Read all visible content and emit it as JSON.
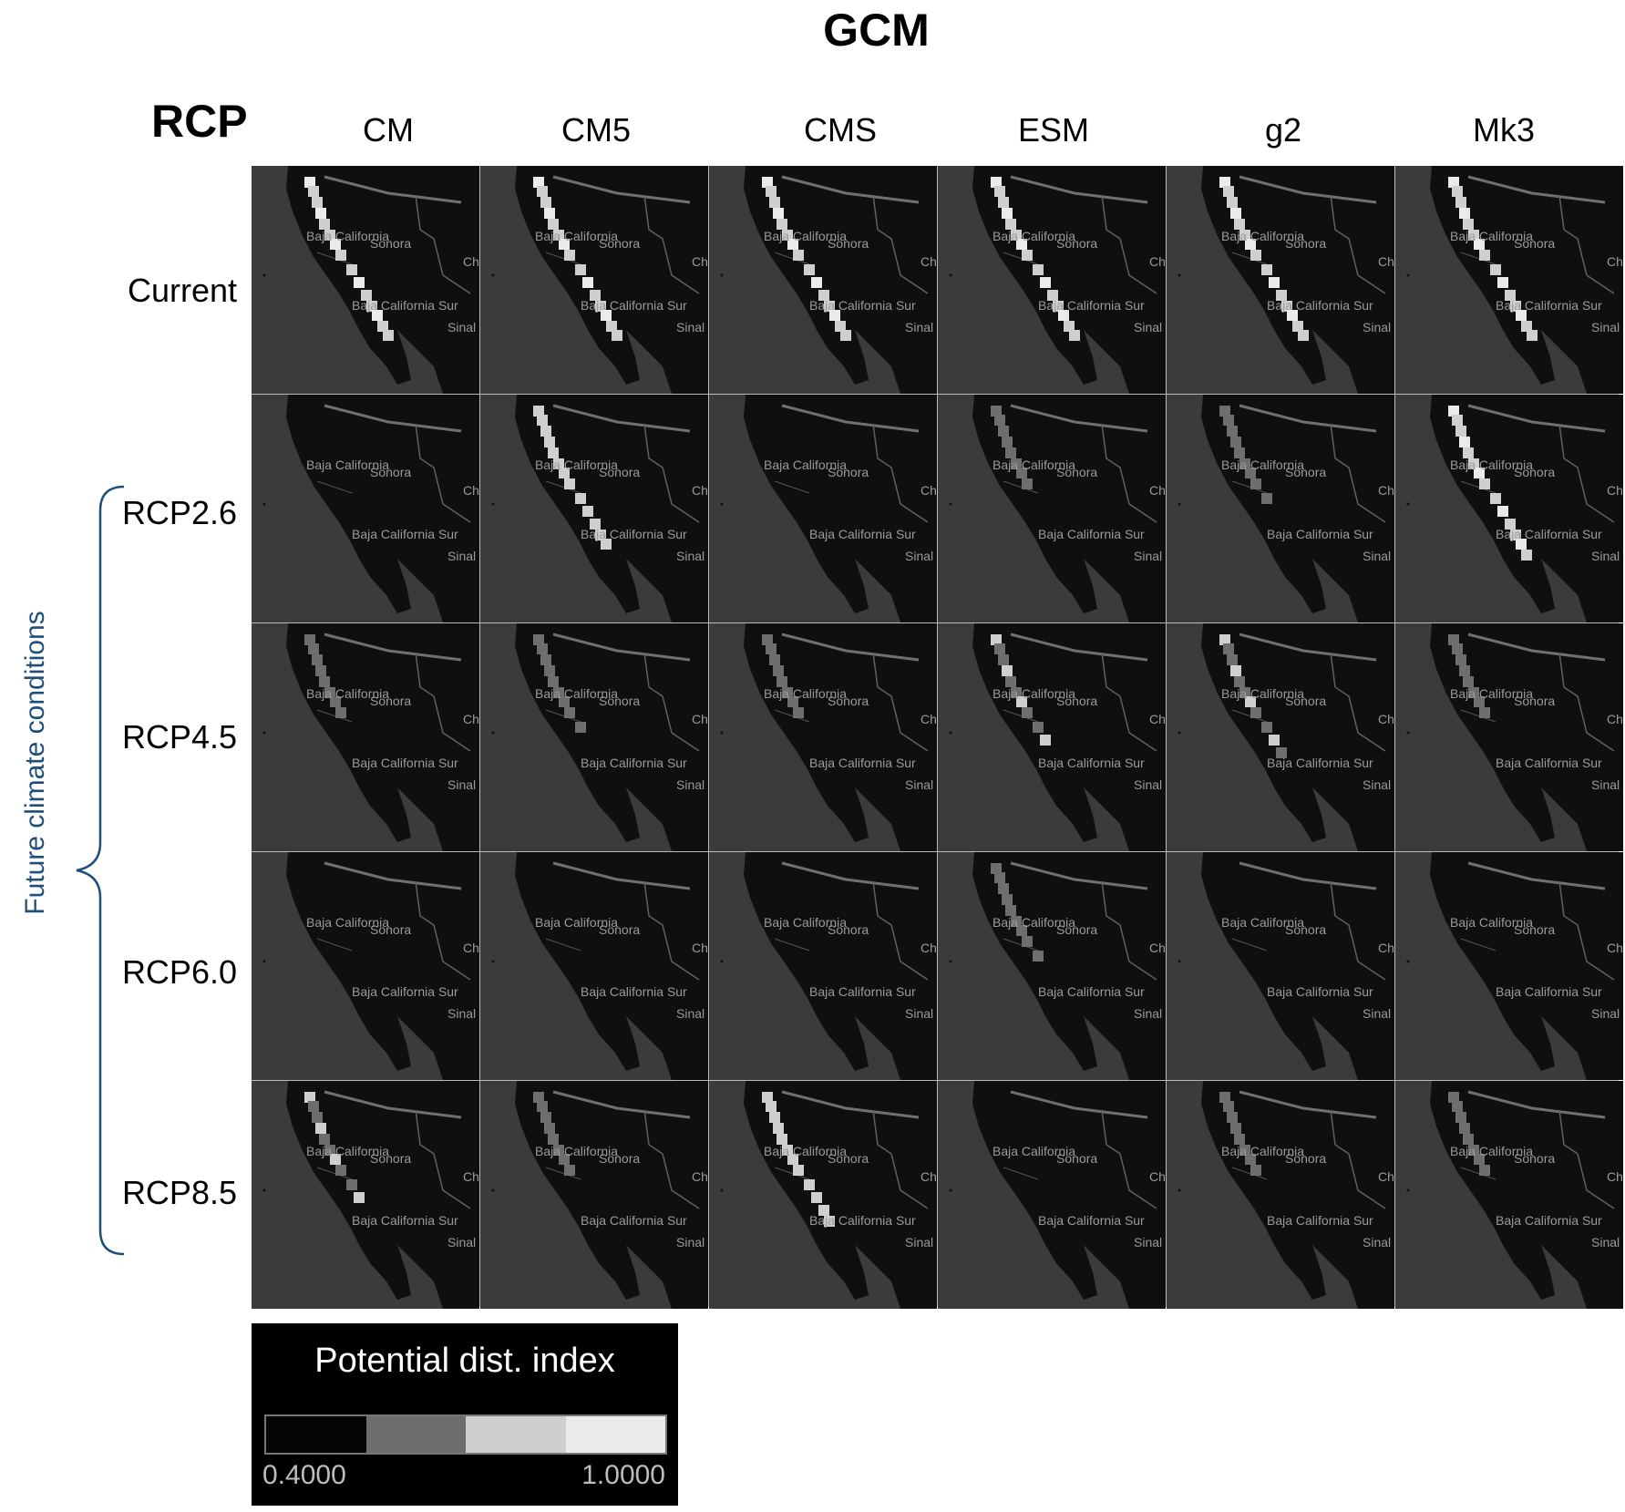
{
  "header": {
    "gcm_title": "GCM",
    "rcp_title": "RCP"
  },
  "columns": [
    "CM",
    "CM5",
    "CMS",
    "ESM",
    "g2",
    "Mk3"
  ],
  "rows": [
    "Current",
    "RCP2.6",
    "RCP4.5",
    "RCP6.0",
    "RCP8.5"
  ],
  "future_label": "Future climate conditions",
  "map_labels": {
    "baja_california": "Baja California",
    "sonora": "Sonora",
    "baja_california_sur": "Baja California Sur",
    "sinaloa": "Sinal",
    "chihuahua": "Ch"
  },
  "legend": {
    "title": "Potential dist. index",
    "min_label": "0.4000",
    "max_label": "1.0000",
    "colors": [
      "#050505",
      "#6e6e6e",
      "#cfcfcf",
      "#ebebeb"
    ]
  },
  "suitability": [
    [
      0.95,
      0.95,
      0.95,
      0.95,
      0.95,
      0.95
    ],
    [
      0.0,
      0.8,
      0.0,
      0.45,
      0.55,
      0.85
    ],
    [
      0.5,
      0.55,
      0.5,
      0.6,
      0.65,
      0.5
    ],
    [
      0.0,
      0.0,
      0.0,
      0.55,
      0.0,
      0.35
    ],
    [
      0.6,
      0.45,
      0.75,
      0.0,
      0.5,
      0.45
    ]
  ]
}
